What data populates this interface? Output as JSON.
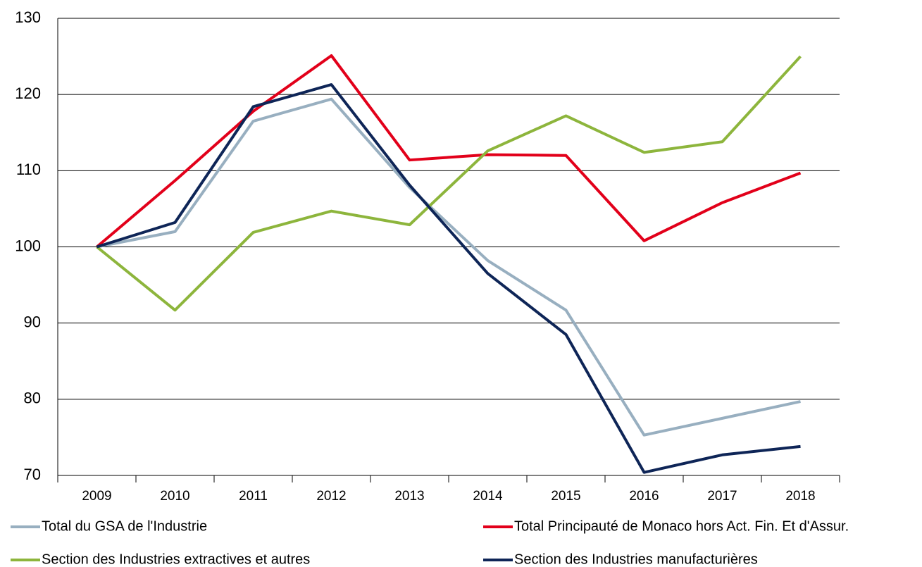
{
  "chart_data": {
    "type": "line",
    "categories": [
      "2009",
      "2010",
      "2011",
      "2012",
      "2013",
      "2014",
      "2015",
      "2016",
      "2017",
      "2018"
    ],
    "series": [
      {
        "name": "Total du GSA de l'Industrie",
        "color": "#98afc0",
        "values": [
          100,
          102,
          116.5,
          119.4,
          107.8,
          98.2,
          91.7,
          75.3,
          77.5,
          79.7
        ]
      },
      {
        "name": "Total Principauté de Monaco hors Act. Fin. Et d'Assur.",
        "color": "#e2001a",
        "values": [
          100,
          108.7,
          117.8,
          125.1,
          111.4,
          112.1,
          112.0,
          100.8,
          105.8,
          109.7
        ]
      },
      {
        "name": "Section des Industries extractives et autres",
        "color": "#8db53c",
        "values": [
          100,
          91.7,
          101.9,
          104.7,
          102.9,
          112.6,
          117.2,
          112.4,
          113.8,
          125.0
        ]
      },
      {
        "name": "Section des Industries manufacturières",
        "color": "#0e2557",
        "values": [
          100,
          103.2,
          118.4,
          121.3,
          108.1,
          96.5,
          88.5,
          70.4,
          72.7,
          73.8
        ]
      }
    ],
    "ylim": [
      70,
      130
    ],
    "yticks": [
      70,
      80,
      90,
      100,
      110,
      120,
      130
    ],
    "grid": true,
    "legend": "bottom"
  }
}
